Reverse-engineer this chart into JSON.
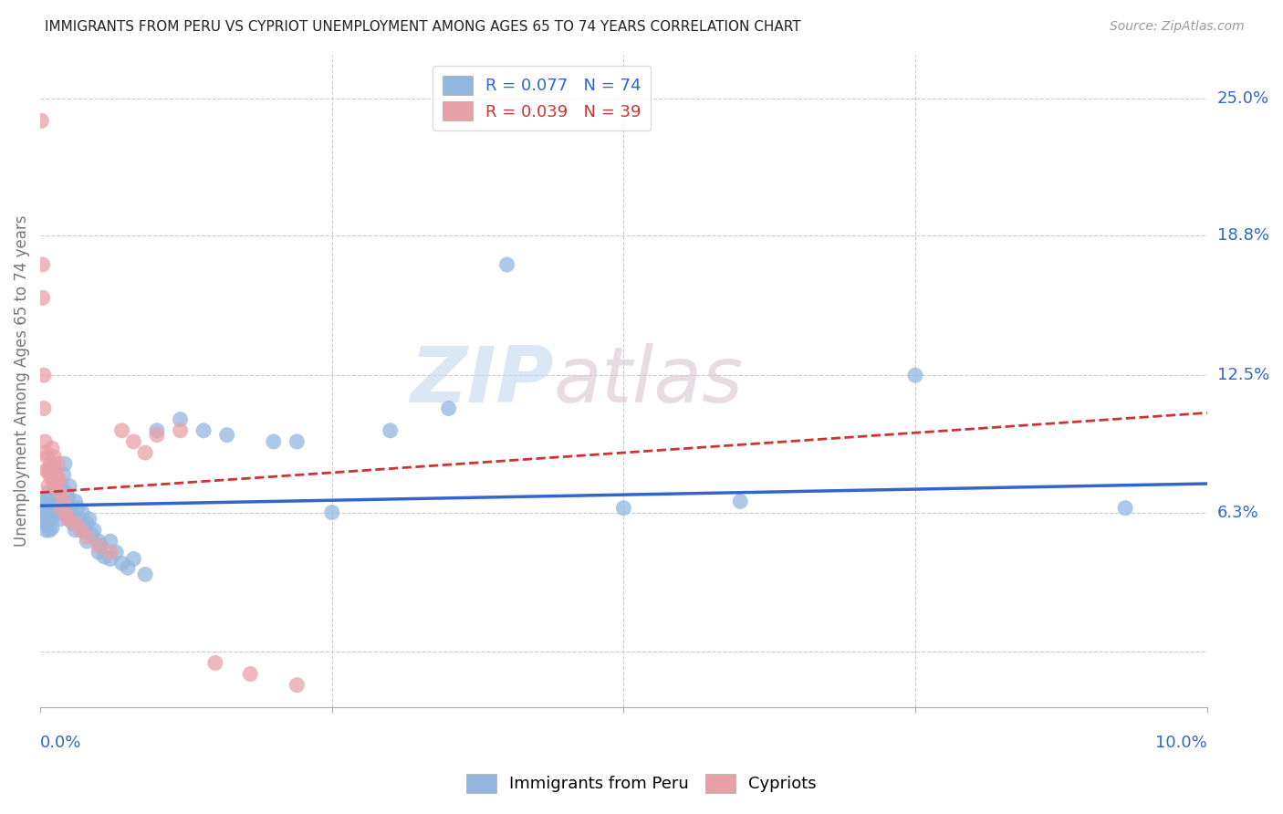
{
  "title": "IMMIGRANTS FROM PERU VS CYPRIOT UNEMPLOYMENT AMONG AGES 65 TO 74 YEARS CORRELATION CHART",
  "source": "Source: ZipAtlas.com",
  "ylabel": "Unemployment Among Ages 65 to 74 years",
  "y_tick_vals": [
    0.0,
    0.063,
    0.125,
    0.188,
    0.25
  ],
  "y_tick_labels": [
    "",
    "6.3%",
    "12.5%",
    "18.8%",
    "25.0%"
  ],
  "x_min": 0.0,
  "x_max": 0.1,
  "y_min": -0.025,
  "y_max": 0.27,
  "legend1_R": "R = 0.077",
  "legend1_N": "N = 74",
  "legend2_R": "R = 0.039",
  "legend2_N": "N = 39",
  "color_blue": "#92b8e0",
  "color_pink": "#e8a0a8",
  "color_line_blue": "#3366cc",
  "color_line_pink": "#cc3333",
  "watermark_zip": "ZIP",
  "watermark_atlas": "atlas",
  "blue_scatter_x": [
    0.0002,
    0.0003,
    0.0004,
    0.0004,
    0.0005,
    0.0005,
    0.0006,
    0.0006,
    0.0007,
    0.0007,
    0.0008,
    0.0008,
    0.0009,
    0.0009,
    0.001,
    0.001,
    0.001,
    0.0012,
    0.0012,
    0.0013,
    0.0014,
    0.0015,
    0.0015,
    0.0016,
    0.0017,
    0.0018,
    0.0019,
    0.002,
    0.002,
    0.0021,
    0.0022,
    0.0023,
    0.0024,
    0.0025,
    0.0026,
    0.0027,
    0.0028,
    0.003,
    0.003,
    0.0032,
    0.0033,
    0.0035,
    0.0036,
    0.0038,
    0.004,
    0.004,
    0.0042,
    0.0044,
    0.0046,
    0.005,
    0.005,
    0.0052,
    0.0055,
    0.006,
    0.006,
    0.0065,
    0.007,
    0.0075,
    0.008,
    0.009,
    0.01,
    0.012,
    0.014,
    0.016,
    0.02,
    0.022,
    0.025,
    0.03,
    0.035,
    0.04,
    0.05,
    0.06,
    0.075,
    0.093
  ],
  "blue_scatter_y": [
    0.063,
    0.06,
    0.065,
    0.058,
    0.068,
    0.055,
    0.07,
    0.062,
    0.072,
    0.058,
    0.065,
    0.055,
    0.068,
    0.06,
    0.07,
    0.063,
    0.056,
    0.075,
    0.062,
    0.08,
    0.07,
    0.075,
    0.065,
    0.068,
    0.06,
    0.075,
    0.065,
    0.08,
    0.068,
    0.085,
    0.072,
    0.065,
    0.07,
    0.075,
    0.065,
    0.06,
    0.058,
    0.068,
    0.055,
    0.065,
    0.06,
    0.055,
    0.063,
    0.056,
    0.058,
    0.05,
    0.06,
    0.053,
    0.055,
    0.05,
    0.045,
    0.048,
    0.043,
    0.05,
    0.042,
    0.045,
    0.04,
    0.038,
    0.042,
    0.035,
    0.1,
    0.105,
    0.1,
    0.098,
    0.095,
    0.095,
    0.063,
    0.1,
    0.11,
    0.175,
    0.065,
    0.068,
    0.125,
    0.065
  ],
  "pink_scatter_x": [
    0.0001,
    0.0002,
    0.0002,
    0.0003,
    0.0003,
    0.0004,
    0.0005,
    0.0005,
    0.0006,
    0.0007,
    0.0007,
    0.0008,
    0.0009,
    0.001,
    0.001,
    0.0012,
    0.0012,
    0.0013,
    0.0014,
    0.0015,
    0.0016,
    0.0017,
    0.0018,
    0.002,
    0.0022,
    0.0024,
    0.003,
    0.0035,
    0.004,
    0.005,
    0.006,
    0.007,
    0.008,
    0.009,
    0.01,
    0.012,
    0.015,
    0.018,
    0.022
  ],
  "pink_scatter_y": [
    0.24,
    0.175,
    0.16,
    0.125,
    0.11,
    0.095,
    0.09,
    0.082,
    0.088,
    0.082,
    0.075,
    0.08,
    0.085,
    0.092,
    0.078,
    0.088,
    0.075,
    0.082,
    0.078,
    0.085,
    0.078,
    0.072,
    0.065,
    0.068,
    0.062,
    0.06,
    0.058,
    0.055,
    0.052,
    0.048,
    0.045,
    0.1,
    0.095,
    0.09,
    0.098,
    0.1,
    -0.005,
    -0.01,
    -0.015
  ],
  "blue_line_x0": 0.0,
  "blue_line_x1": 0.1,
  "blue_line_y0": 0.066,
  "blue_line_y1": 0.076,
  "pink_line_x0": 0.0,
  "pink_line_x1": 0.1,
  "pink_line_y0": 0.072,
  "pink_line_y1": 0.108
}
